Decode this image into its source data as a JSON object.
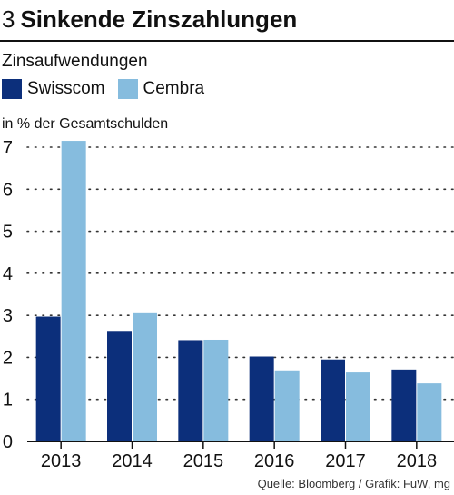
{
  "header": {
    "number": "3",
    "title": "Sinkende Zinszahlungen"
  },
  "subtitle": "Zinsaufwendungen",
  "unit_label": "in % der Gesamtschulden",
  "source": "Quelle: Bloomberg / Grafik: FuW, mg",
  "colors": {
    "swisscom": "#0c2f7b",
    "cembra": "#86bcde",
    "axis": "#111111",
    "grid": "#333333"
  },
  "chart_data": {
    "type": "bar",
    "title": "Sinkende Zinszahlungen",
    "subtitle": "Zinsaufwendungen",
    "ylabel": "in % der Gesamtschulden",
    "categories": [
      "2013",
      "2014",
      "2015",
      "2016",
      "2017",
      "2018"
    ],
    "series": [
      {
        "name": "Swisscom",
        "values": [
          2.97,
          2.63,
          2.41,
          2.02,
          1.95,
          1.71
        ]
      },
      {
        "name": "Cembra",
        "values": [
          7.15,
          3.05,
          2.42,
          1.69,
          1.64,
          1.38
        ]
      }
    ],
    "ylim": [
      0,
      7
    ],
    "yticks": [
      "0",
      "1",
      "2",
      "3",
      "4",
      "5",
      "6",
      "7"
    ],
    "grid": true,
    "legend": "top-left"
  }
}
